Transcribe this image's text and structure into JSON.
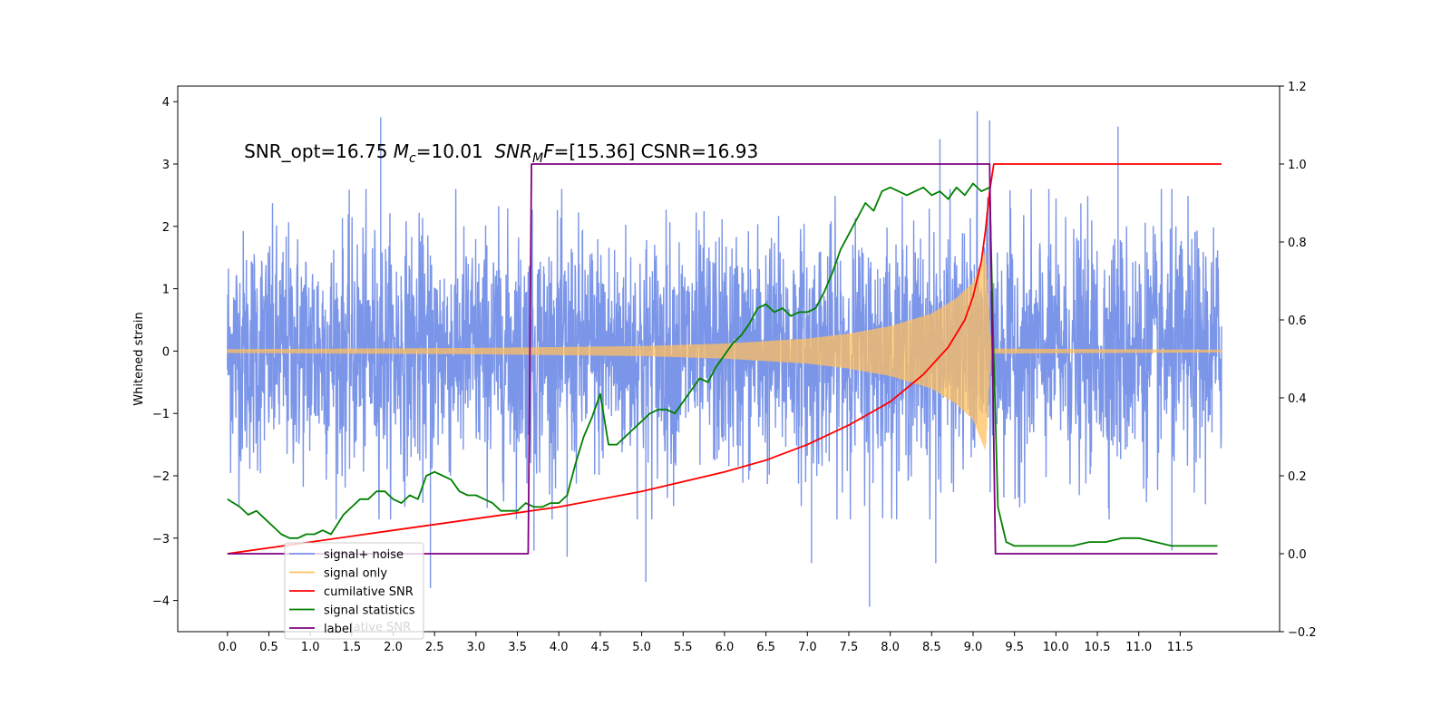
{
  "chart_data": {
    "type": "line",
    "title": "",
    "xlabel": "",
    "ylabel": "Whitened strain",
    "xlim": [
      -0.6,
      12.7
    ],
    "ylim": [
      -4.5,
      4.25
    ],
    "y2lim": [
      -0.2,
      1.2
    ],
    "grid": false,
    "legend_position": "lower-left",
    "annotation": {
      "prefix": "SNR_opt=16.75 ",
      "mc_symbol": "M",
      "mc_sub": "c",
      "mc_value": "=10.01  ",
      "mf_symbol": "SNR",
      "mf_sub": "M",
      "mf_letter": "F",
      "mf_value": "=[15.36] CSNR=16.93"
    },
    "x_ticks": [
      "0.0",
      "0.5",
      "1.0",
      "1.5",
      "2.0",
      "2.5",
      "3.0",
      "3.5",
      "4.0",
      "4.5",
      "5.0",
      "5.5",
      "6.0",
      "6.5",
      "7.0",
      "7.5",
      "8.0",
      "8.5",
      "9.0",
      "9.5",
      "10.0",
      "10.5",
      "11.0",
      "11.5"
    ],
    "y_ticks": [
      "4",
      "3",
      "2",
      "1",
      "0",
      "−1",
      "−2",
      "−3",
      "−4"
    ],
    "y2_ticks": [
      "1.2",
      "1.0",
      "0.8",
      "0.6",
      "0.4",
      "0.2",
      "0.0",
      "−0.2"
    ],
    "legend": [
      {
        "label": "signal+ noise",
        "color": "#7b95e8"
      },
      {
        "label": "signal only",
        "color": "#ffc060"
      },
      {
        "label": "cumilative SNR",
        "color": "#ff0000"
      },
      {
        "label": "signal statistics",
        "color": "#008000"
      },
      {
        "label": "label",
        "color": "#800080"
      }
    ],
    "legend_ghost_text": "lative SNR",
    "series": [
      {
        "name": "signal+ noise",
        "axis": "left",
        "color": "#7b95e8",
        "description_range": [
          0,
          12
        ],
        "envelope_y": [
          -2.5,
          2.5
        ],
        "extreme_points": [
          [
            1.85,
            3.75
          ],
          [
            9.05,
            3.85
          ],
          [
            9.2,
            3.7
          ],
          [
            8.6,
            3.4
          ],
          [
            10.75,
            3.6
          ],
          [
            2.45,
            -3.8
          ],
          [
            5.05,
            -3.7
          ],
          [
            7.75,
            -4.1
          ],
          [
            8.55,
            -3.4
          ],
          [
            4.1,
            -3.3
          ],
          [
            7.05,
            -3.4
          ],
          [
            3.7,
            -3.2
          ],
          [
            11.4,
            -3.2
          ]
        ]
      },
      {
        "name": "signal only",
        "axis": "left",
        "color": "#ffc060",
        "amplitude": [
          [
            0.0,
            0.03
          ],
          [
            3.0,
            0.05
          ],
          [
            5.0,
            0.08
          ],
          [
            6.0,
            0.12
          ],
          [
            7.0,
            0.2
          ],
          [
            7.5,
            0.28
          ],
          [
            8.0,
            0.4
          ],
          [
            8.5,
            0.6
          ],
          [
            8.8,
            0.85
          ],
          [
            9.0,
            1.1
          ],
          [
            9.15,
            1.6
          ],
          [
            9.22,
            0.04
          ],
          [
            12.0,
            0.02
          ]
        ]
      },
      {
        "name": "cumilative SNR",
        "axis": "right",
        "color": "#ff0000",
        "x": [
          0.0,
          1.0,
          2.0,
          3.0,
          4.0,
          5.0,
          6.0,
          6.5,
          7.0,
          7.5,
          8.0,
          8.4,
          8.7,
          8.9,
          9.0,
          9.1,
          9.15,
          9.2,
          9.25,
          12.0
        ],
        "y": [
          0.0,
          0.03,
          0.06,
          0.09,
          0.12,
          0.16,
          0.21,
          0.24,
          0.28,
          0.33,
          0.39,
          0.46,
          0.53,
          0.6,
          0.66,
          0.75,
          0.83,
          0.93,
          1.0,
          1.0
        ]
      },
      {
        "name": "signal statistics",
        "axis": "right",
        "color": "#008000",
        "x": [
          0.0,
          0.15,
          0.25,
          0.35,
          0.45,
          0.55,
          0.65,
          0.75,
          0.85,
          0.95,
          1.05,
          1.15,
          1.25,
          1.4,
          1.5,
          1.6,
          1.7,
          1.8,
          1.9,
          2.0,
          2.1,
          2.2,
          2.3,
          2.4,
          2.5,
          2.6,
          2.7,
          2.8,
          2.9,
          3.0,
          3.1,
          3.2,
          3.3,
          3.4,
          3.5,
          3.6,
          3.7,
          3.8,
          3.9,
          4.0,
          4.1,
          4.2,
          4.3,
          4.4,
          4.5,
          4.6,
          4.7,
          4.8,
          4.9,
          5.0,
          5.1,
          5.2,
          5.3,
          5.4,
          5.5,
          5.6,
          5.7,
          5.8,
          5.9,
          6.0,
          6.1,
          6.2,
          6.3,
          6.4,
          6.5,
          6.6,
          6.7,
          6.8,
          6.9,
          7.0,
          7.1,
          7.2,
          7.3,
          7.4,
          7.5,
          7.6,
          7.7,
          7.8,
          7.9,
          8.0,
          8.1,
          8.2,
          8.3,
          8.4,
          8.5,
          8.6,
          8.7,
          8.8,
          8.9,
          9.0,
          9.1,
          9.2,
          9.25,
          9.3,
          9.4,
          9.5,
          9.6,
          9.8,
          10.0,
          10.2,
          10.4,
          10.6,
          10.8,
          11.0,
          11.2,
          11.4,
          11.6,
          11.8,
          11.95
        ],
        "y": [
          0.14,
          0.12,
          0.1,
          0.11,
          0.09,
          0.07,
          0.05,
          0.04,
          0.04,
          0.05,
          0.05,
          0.06,
          0.05,
          0.1,
          0.12,
          0.14,
          0.14,
          0.16,
          0.16,
          0.14,
          0.13,
          0.15,
          0.14,
          0.2,
          0.21,
          0.2,
          0.19,
          0.16,
          0.15,
          0.15,
          0.14,
          0.13,
          0.11,
          0.11,
          0.11,
          0.13,
          0.12,
          0.12,
          0.13,
          0.13,
          0.15,
          0.23,
          0.3,
          0.35,
          0.41,
          0.28,
          0.28,
          0.3,
          0.32,
          0.34,
          0.36,
          0.37,
          0.37,
          0.36,
          0.39,
          0.42,
          0.45,
          0.44,
          0.48,
          0.51,
          0.54,
          0.56,
          0.59,
          0.63,
          0.64,
          0.62,
          0.63,
          0.61,
          0.62,
          0.62,
          0.63,
          0.67,
          0.72,
          0.78,
          0.82,
          0.86,
          0.9,
          0.88,
          0.93,
          0.94,
          0.93,
          0.92,
          0.93,
          0.94,
          0.92,
          0.93,
          0.91,
          0.94,
          0.92,
          0.95,
          0.93,
          0.94,
          0.5,
          0.12,
          0.03,
          0.02,
          0.02,
          0.02,
          0.02,
          0.02,
          0.03,
          0.03,
          0.04,
          0.04,
          0.03,
          0.02,
          0.02,
          0.02,
          0.02
        ]
      },
      {
        "name": "label",
        "axis": "right",
        "color": "#800080",
        "x": [
          0.0,
          3.63,
          3.67,
          9.2,
          9.27,
          11.95
        ],
        "y": [
          0.0,
          0.0,
          1.0,
          1.0,
          0.0,
          0.0
        ]
      }
    ]
  }
}
